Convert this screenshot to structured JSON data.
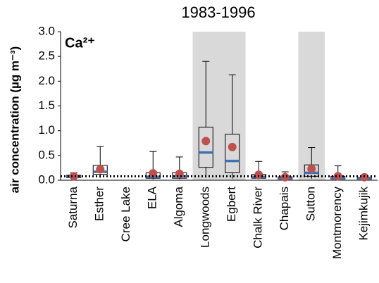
{
  "chart_data": {
    "type": "box",
    "title": "1983-1996",
    "annotation": "Ca²⁺",
    "y_label": "air concentration (µg m⁻³)",
    "categories": [
      "Saturna",
      "Esther",
      "Cree Lake",
      "ELA",
      "Algoma",
      "Longwoods",
      "Egbert",
      "Chalk River",
      "Chapais",
      "Sutton",
      "Montmorency",
      "Kejimkujik"
    ],
    "min": [
      0.02,
      0.05,
      null,
      0.02,
      0.02,
      0.05,
      0.03,
      0.02,
      0.01,
      0.03,
      0.01,
      0.01
    ],
    "q1": [
      0.05,
      0.12,
      null,
      0.04,
      0.04,
      0.26,
      0.15,
      0.04,
      0.02,
      0.08,
      0.02,
      0.02
    ],
    "median": [
      0.07,
      0.17,
      null,
      0.07,
      0.08,
      0.56,
      0.39,
      0.07,
      0.04,
      0.15,
      0.04,
      0.04
    ],
    "q3": [
      0.1,
      0.3,
      null,
      0.15,
      0.15,
      1.07,
      0.93,
      0.12,
      0.07,
      0.31,
      0.08,
      0.06
    ],
    "max": [
      0.15,
      0.68,
      null,
      0.58,
      0.47,
      2.4,
      2.13,
      0.38,
      0.17,
      0.66,
      0.29,
      0.08
    ],
    "mean": [
      0.08,
      0.22,
      null,
      0.14,
      0.13,
      0.79,
      0.67,
      0.11,
      0.06,
      0.23,
      0.08,
      0.06
    ],
    "median_color": "#3d72b8",
    "mean_color": "#c0504d",
    "box_color": "#000000",
    "highlight_categories": [
      "Longwoods",
      "Egbert",
      "Sutton"
    ],
    "highlight_color": "#d9d9d9",
    "reference_line": 0.08,
    "ylim": [
      0,
      3
    ],
    "yticks": [
      {
        "value": 0,
        "label": "0.0"
      },
      0.5,
      {
        "value": 1,
        "label": "1.0"
      },
      1.5,
      {
        "value": 2,
        "label": "2.0"
      },
      2.5,
      {
        "value": 3,
        "label": "3.0"
      }
    ]
  }
}
